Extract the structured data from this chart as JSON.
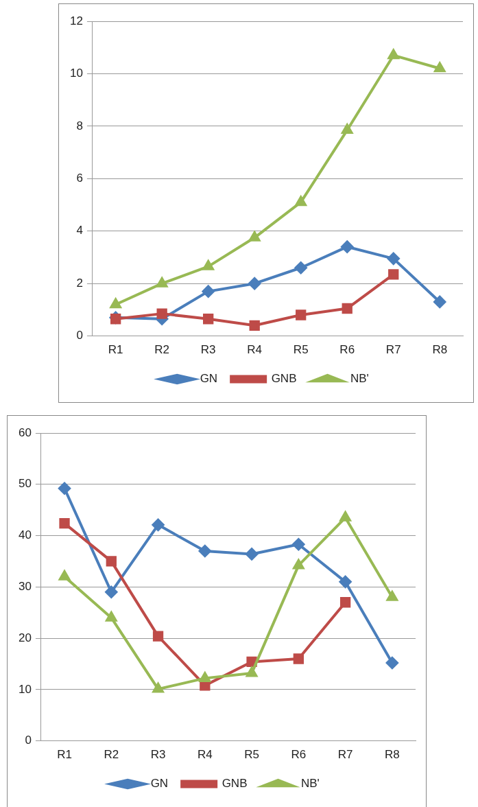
{
  "chart_data": [
    {
      "type": "line",
      "categories": [
        "R1",
        "R2",
        "R3",
        "R4",
        "R5",
        "R6",
        "R7",
        "R8"
      ],
      "series": [
        {
          "name": "GN",
          "color": "#4a7ebb",
          "values": [
            0.7,
            0.65,
            1.7,
            2.0,
            2.6,
            3.4,
            2.95,
            1.3
          ]
        },
        {
          "name": "GNB",
          "color": "#be4b48",
          "values": [
            0.65,
            0.85,
            0.65,
            0.4,
            0.8,
            1.05,
            2.35,
            null
          ],
          "marker": "square"
        },
        {
          "name": "NB'",
          "color": "#98b954",
          "values": [
            1.2,
            2.0,
            2.65,
            3.75,
            5.1,
            7.85,
            10.7,
            10.2
          ],
          "marker": "triangle"
        }
      ],
      "marker": "diamond",
      "ylim": [
        0,
        12
      ],
      "yticks": [
        0,
        2,
        4,
        6,
        8,
        10,
        12
      ],
      "grid": "y",
      "legend": "bottom"
    },
    {
      "type": "line",
      "categories": [
        "R1",
        "R2",
        "R3",
        "R4",
        "R5",
        "R6",
        "R7",
        "R8"
      ],
      "series": [
        {
          "name": "GN",
          "color": "#4a7ebb",
          "values": [
            49.2,
            29,
            42.1,
            37,
            36.4,
            38.3,
            31,
            15.2
          ]
        },
        {
          "name": "GNB",
          "color": "#be4b48",
          "values": [
            42.4,
            35,
            20.4,
            10.8,
            15.4,
            16,
            27,
            null
          ],
          "marker": "square"
        },
        {
          "name": "NB'",
          "color": "#98b954",
          "values": [
            32,
            24,
            10.1,
            12.2,
            13.2,
            34.2,
            43.5,
            28
          ],
          "marker": "triangle"
        }
      ],
      "marker": "diamond",
      "ylim": [
        0,
        60
      ],
      "yticks": [
        0,
        10,
        20,
        30,
        40,
        50,
        60
      ],
      "grid": "y",
      "legend": "bottom"
    }
  ]
}
